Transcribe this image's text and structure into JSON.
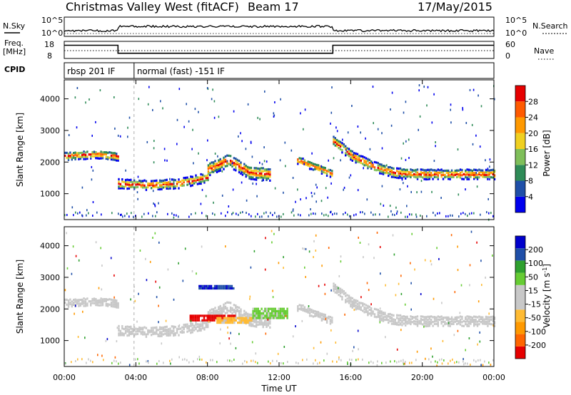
{
  "header": {
    "title": "Christmas Valley West (fitACF)",
    "beam": "Beam 17",
    "date": "17/May/2015"
  },
  "summary": {
    "nsky_label": "N.Sky",
    "nsearch_label": "N.Search",
    "noise_ticks": [
      "10^5",
      "10^0"
    ],
    "freq_label": "Freq.",
    "freq_unit": "[MHz]",
    "freq_ticks": [
      "18",
      "8"
    ],
    "nave_label": "Nave",
    "nave_ticks": [
      "60",
      "0"
    ],
    "cpid_label": "CPID",
    "cpid_segments": [
      {
        "label": "rbsp 201 IF",
        "start_h": 0.0,
        "end_h": 3.9
      },
      {
        "label": "normal (fast) -151 IF",
        "start_h": 3.9,
        "end_h": 24.0
      }
    ],
    "freq_steps": [
      {
        "start_h": 0.0,
        "end_h": 3.0,
        "freq_mhz": 16.6
      },
      {
        "start_h": 3.0,
        "end_h": 15.0,
        "freq_mhz": 10.4
      },
      {
        "start_h": 15.0,
        "end_h": 24.0,
        "freq_mhz": 16.6
      }
    ]
  },
  "colors": {
    "power": [
      "#0000ee",
      "#1f4fa8",
      "#2e8b57",
      "#7fbf5a",
      "#f0d020",
      "#ff9900",
      "#ff5a00",
      "#e60000"
    ],
    "velocity": [
      "#e60000",
      "#ff6600",
      "#ff9900",
      "#ffbb33",
      "#c8c8c8",
      "#c8c8c8",
      "#66cc33",
      "#2ea02e",
      "#1f4fa8",
      "#0000cc"
    ],
    "gray": "#c8c8c8"
  },
  "chart_data": [
    {
      "type": "heatmap",
      "name": "power-panel",
      "xlabel": "Time UT",
      "ylabel": "Slant Range [km]",
      "xlim": [
        0,
        24
      ],
      "ylim": [
        180,
        4600
      ],
      "yticks": [
        "1000",
        "2000",
        "3000",
        "4000"
      ],
      "colorbar": {
        "label": "Power [dB]",
        "ticks": [
          "4",
          "8",
          "12",
          "16",
          "20",
          "24",
          "28"
        ],
        "range": [
          0,
          32
        ]
      },
      "bands": [
        {
          "start_h": 0.0,
          "end_h": 3.0,
          "center_km": [
            2220,
            2260,
            2280,
            2200
          ],
          "width_km": 260
        },
        {
          "start_h": 3.0,
          "end_h": 8.0,
          "center_km": [
            1350,
            1300,
            1350,
            1550
          ],
          "width_km": 300
        },
        {
          "start_h": 8.0,
          "end_h": 11.5,
          "center_km": [
            1800,
            2100,
            1700,
            1650
          ],
          "width_km": 420
        },
        {
          "start_h": 13.0,
          "end_h": 15.0,
          "center_km": [
            2100,
            1950,
            1800,
            1650
          ],
          "width_km": 260
        },
        {
          "start_h": 15.0,
          "end_h": 24.0,
          "center_km": [
            2700,
            2200,
            1900,
            1700,
            1650,
            1650,
            1650,
            1650,
            1650
          ],
          "width_km": 320
        }
      ]
    },
    {
      "type": "heatmap",
      "name": "velocity-panel",
      "xlabel": "Time UT",
      "ylabel": "Slant Range [km]",
      "xlim": [
        0,
        24
      ],
      "ylim": [
        180,
        4600
      ],
      "yticks": [
        "1000",
        "2000",
        "3000",
        "4000"
      ],
      "xticks": [
        "00:00",
        "04:00",
        "08:00",
        "12:00",
        "16:00",
        "20:00",
        "00:00"
      ],
      "colorbar": {
        "label": "Velocity [m s^-1]",
        "ticks": [
          "-200",
          "-100",
          "-50",
          "-15",
          "15",
          "50",
          "100",
          "200"
        ],
        "range": [
          -250,
          250
        ]
      },
      "features": [
        {
          "start_h": 7.0,
          "end_h": 9.5,
          "center_km": 1750,
          "width_km": 150,
          "velocity": -220
        },
        {
          "start_h": 8.5,
          "end_h": 10.5,
          "center_km": 1700,
          "width_km": 200,
          "velocity": -60
        },
        {
          "start_h": 10.5,
          "end_h": 12.5,
          "center_km": 1900,
          "width_km": 300,
          "velocity": 60
        },
        {
          "start_h": 7.5,
          "end_h": 9.5,
          "center_km": 2750,
          "width_km": 130,
          "velocity": 200
        }
      ]
    }
  ]
}
